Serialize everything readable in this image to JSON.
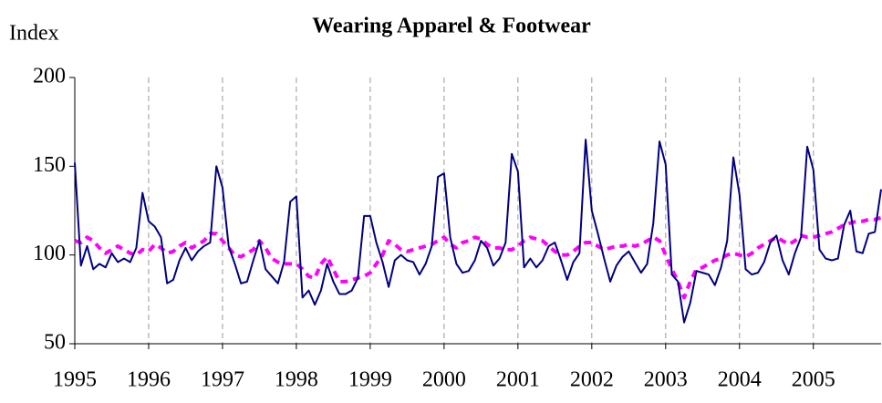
{
  "chart_data": {
    "type": "line",
    "title": "Wearing Apparel & Footwear",
    "y_label": "Index",
    "x": [
      1995,
      1995.083,
      1995.167,
      1995.25,
      1995.333,
      1995.417,
      1995.5,
      1995.583,
      1995.667,
      1995.75,
      1995.833,
      1995.917,
      1996,
      1996.083,
      1996.167,
      1996.25,
      1996.333,
      1996.417,
      1996.5,
      1996.583,
      1996.667,
      1996.75,
      1996.833,
      1996.917,
      1997,
      1997.083,
      1997.167,
      1997.25,
      1997.333,
      1997.417,
      1997.5,
      1997.583,
      1997.667,
      1997.75,
      1997.833,
      1997.917,
      1998,
      1998.083,
      1998.167,
      1998.25,
      1998.333,
      1998.417,
      1998.5,
      1998.583,
      1998.667,
      1998.75,
      1998.833,
      1998.917,
      1999,
      1999.083,
      1999.167,
      1999.25,
      1999.333,
      1999.417,
      1999.5,
      1999.583,
      1999.667,
      1999.75,
      1999.833,
      1999.917,
      2000,
      2000.083,
      2000.167,
      2000.25,
      2000.333,
      2000.417,
      2000.5,
      2000.583,
      2000.667,
      2000.75,
      2000.833,
      2000.917,
      2001,
      2001.083,
      2001.167,
      2001.25,
      2001.333,
      2001.417,
      2001.5,
      2001.583,
      2001.667,
      2001.75,
      2001.833,
      2001.917,
      2002,
      2002.083,
      2002.167,
      2002.25,
      2002.333,
      2002.417,
      2002.5,
      2002.583,
      2002.667,
      2002.75,
      2002.833,
      2002.917,
      2003,
      2003.083,
      2003.167,
      2003.25,
      2003.333,
      2003.417,
      2003.5,
      2003.583,
      2003.667,
      2003.75,
      2003.833,
      2003.917,
      2004,
      2004.083,
      2004.167,
      2004.25,
      2004.333,
      2004.417,
      2004.5,
      2004.583,
      2004.667,
      2004.75,
      2004.833,
      2004.917,
      2005,
      2005.083,
      2005.167,
      2005.25,
      2005.333,
      2005.417,
      2005.5,
      2005.583,
      2005.667,
      2005.75,
      2005.833,
      2005.917
    ],
    "series": [
      {
        "color": "#000080",
        "dash": false,
        "values": [
          152,
          94,
          105,
          92,
          95,
          93,
          101,
          96,
          98,
          96,
          104,
          135,
          119,
          116,
          110,
          84,
          86,
          97,
          104,
          97,
          102,
          105,
          107,
          150,
          138,
          105,
          95,
          84,
          85,
          97,
          108,
          92,
          88,
          84,
          96,
          130,
          133,
          76,
          80,
          72,
          80,
          95,
          85,
          78,
          78,
          80,
          87,
          122,
          122,
          107,
          96,
          82,
          97,
          100,
          97,
          96,
          89,
          95,
          105,
          144,
          146,
          110,
          95,
          90,
          91,
          97,
          108,
          104,
          94,
          98,
          107,
          157,
          147,
          93,
          98,
          93,
          97,
          105,
          107,
          97,
          86,
          96,
          101,
          165,
          125,
          112,
          98,
          85,
          94,
          99,
          102,
          96,
          90,
          95,
          118,
          164,
          151,
          89,
          85,
          62,
          73,
          91,
          90,
          89,
          83,
          93,
          108,
          155,
          134,
          92,
          89,
          90,
          96,
          107,
          111,
          97,
          89,
          101,
          110,
          161,
          148,
          103,
          98,
          97,
          98,
          117,
          125,
          102,
          101,
          112,
          113,
          137
        ]
      },
      {
        "color": "#ff00ff",
        "dash": true,
        "values": [
          108,
          107,
          110,
          108,
          104,
          101,
          103,
          105,
          103,
          101,
          100,
          103,
          102,
          106,
          104,
          101,
          102,
          105,
          107,
          104,
          106,
          108,
          112,
          112,
          108,
          104,
          100,
          99,
          101,
          103,
          108,
          104,
          98,
          96,
          95,
          95,
          95,
          92,
          88,
          87,
          95,
          99,
          92,
          85,
          85,
          86,
          87,
          88,
          90,
          95,
          100,
          108,
          106,
          103,
          102,
          103,
          104,
          105,
          106,
          108,
          110,
          106,
          104,
          107,
          108,
          110,
          109,
          106,
          104,
          104,
          103,
          103,
          105,
          108,
          110,
          109,
          108,
          105,
          102,
          100,
          100,
          102,
          105,
          107,
          107,
          105,
          103,
          104,
          105,
          105,
          106,
          105,
          106,
          108,
          110,
          108,
          100,
          92,
          85,
          76,
          85,
          92,
          93,
          95,
          97,
          98,
          100,
          101,
          100,
          99,
          101,
          104,
          106,
          108,
          110,
          108,
          106,
          108,
          111,
          110,
          110,
          111,
          112,
          113,
          115,
          117,
          118,
          119,
          119,
          120,
          120,
          121
        ]
      }
    ],
    "xlim": [
      1995,
      2005.917
    ],
    "xticks": [
      1995,
      1996,
      1997,
      1998,
      1999,
      2000,
      2001,
      2002,
      2003,
      2004,
      2005
    ],
    "ylim": [
      50,
      200
    ],
    "yticks": [
      50,
      100,
      150,
      200
    ],
    "grid": true
  }
}
